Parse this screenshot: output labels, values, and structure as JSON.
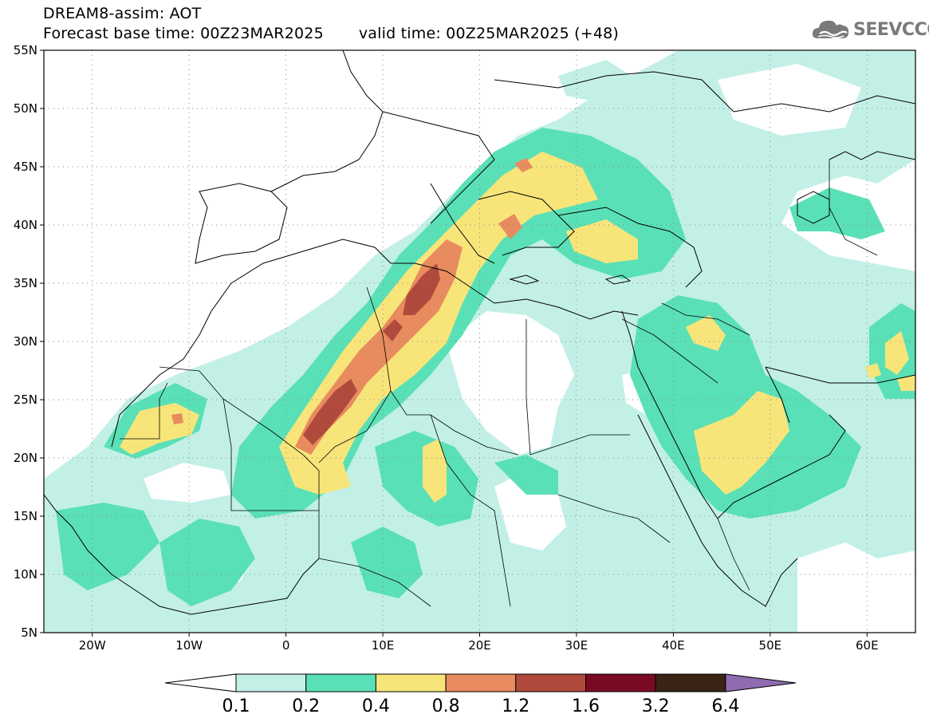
{
  "title": {
    "line1": "DREAM8-assim: AOT",
    "base_time": "Forecast base time: 00Z23MAR2025",
    "valid_time": "valid time: 00Z25MAR2025 (+48)"
  },
  "logo": {
    "text": "SEEVCCC",
    "icon": "cloud-icon",
    "color": "#7a7a7a"
  },
  "map": {
    "lon_range": [
      -25,
      65
    ],
    "lat_range": [
      5,
      55
    ],
    "lat_ticks": [
      {
        "value": 55,
        "label": "55N"
      },
      {
        "value": 50,
        "label": "50N"
      },
      {
        "value": 45,
        "label": "45N"
      },
      {
        "value": 40,
        "label": "40N"
      },
      {
        "value": 35,
        "label": "35N"
      },
      {
        "value": 30,
        "label": "30N"
      },
      {
        "value": 25,
        "label": "25N"
      },
      {
        "value": 20,
        "label": "20N"
      },
      {
        "value": 15,
        "label": "15N"
      },
      {
        "value": 10,
        "label": "10N"
      },
      {
        "value": 5,
        "label": "5N"
      }
    ],
    "lon_ticks": [
      {
        "value": -20,
        "label": "20W"
      },
      {
        "value": -10,
        "label": "10W"
      },
      {
        "value": 0,
        "label": "0"
      },
      {
        "value": 10,
        "label": "10E"
      },
      {
        "value": 20,
        "label": "20E"
      },
      {
        "value": 30,
        "label": "30E"
      },
      {
        "value": 40,
        "label": "40E"
      },
      {
        "value": 50,
        "label": "50E"
      },
      {
        "value": 60,
        "label": "60E"
      }
    ],
    "grid": true
  },
  "colorbar": {
    "levels": [
      "0.1",
      "0.2",
      "0.4",
      "0.8",
      "1.2",
      "1.6",
      "3.2",
      "6.4"
    ],
    "colors": [
      "#c2f0e6",
      "#5ae0b6",
      "#f7e57a",
      "#e88b5e",
      "#b04a3c",
      "#7a0a24",
      "#3a2314",
      "#8f6bb0"
    ],
    "below_color": "#ffffff"
  }
}
